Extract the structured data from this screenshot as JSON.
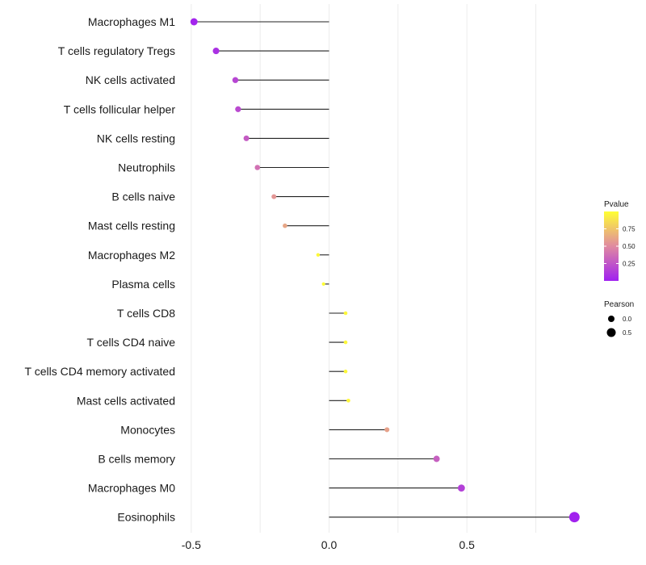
{
  "chart_data": {
    "type": "lollipop",
    "categories": [
      "Macrophages M1",
      "T cells regulatory  Tregs",
      "NK cells activated",
      "T cells follicular helper",
      "NK cells resting",
      "Neutrophils",
      "B cells naive",
      "Mast cells resting",
      "Macrophages M2",
      "Plasma cells",
      "T cells CD8",
      "T cells CD4 naive",
      "T cells CD4 memory activated",
      "Mast cells activated",
      "Monocytes",
      "B cells memory",
      "Macrophages M0",
      "Eosinophils"
    ],
    "values": [
      -0.49,
      -0.41,
      -0.34,
      -0.33,
      -0.3,
      -0.26,
      -0.2,
      -0.16,
      -0.04,
      -0.02,
      0.06,
      0.06,
      0.06,
      0.07,
      0.21,
      0.39,
      0.48,
      0.89
    ],
    "pvalues": [
      0.02,
      0.08,
      0.18,
      0.2,
      0.28,
      0.38,
      0.55,
      0.62,
      0.97,
      0.99,
      0.97,
      0.97,
      0.97,
      0.96,
      0.6,
      0.3,
      0.15,
      0.01
    ],
    "xlim": [
      -0.52,
      0.93
    ],
    "xticks": [
      -0.5,
      0.0,
      0.5
    ],
    "xtick_labels": [
      "-0.5",
      "0.0",
      "0.5"
    ],
    "xlabel": "",
    "ylabel": "",
    "grid": true,
    "legend_color": {
      "title": "Pvalue",
      "range": [
        0.0,
        1.0
      ],
      "ticks": [
        0.25,
        0.5,
        0.75
      ],
      "tick_labels": [
        "0.25",
        "0.50",
        "0.75"
      ],
      "low_color": "#a020f0",
      "mid_color": "#e08aa0",
      "high_color": "#ffff33"
    },
    "legend_size": {
      "title": "Pearson",
      "values": [
        0.0,
        0.5
      ],
      "labels": [
        "0.0",
        "0.5"
      ]
    }
  }
}
